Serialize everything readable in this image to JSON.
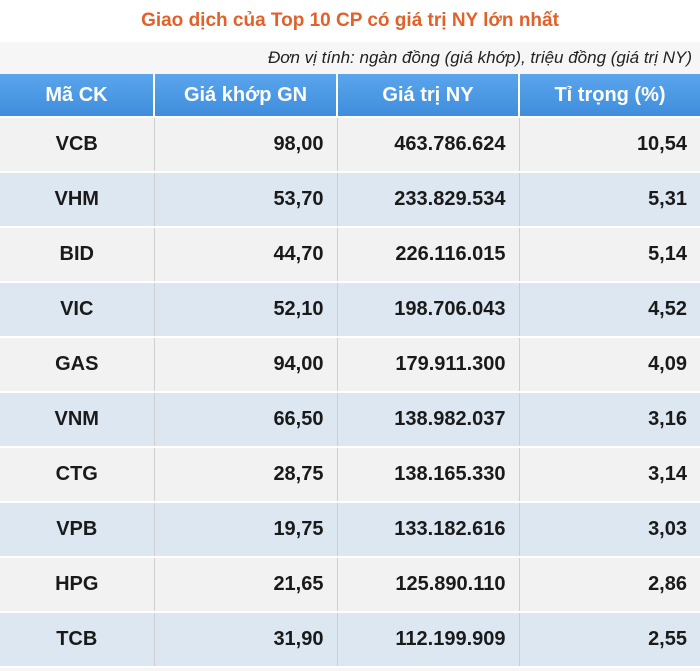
{
  "title": "Giao dịch của Top 10 CP có giá trị NY lớn nhất",
  "unit_note": "Đơn vị tính: ngàn đồng (giá khớp), triệu đồng (giá trị NY)",
  "columns": [
    "Mã CK",
    "Giá khớp GN",
    "Giá trị NY",
    "Tỉ trọng (%)"
  ],
  "rows": [
    {
      "code": "VCB",
      "price": "98,00",
      "value": "463.786.624",
      "weight": "10,54"
    },
    {
      "code": "VHM",
      "price": "53,70",
      "value": "233.829.534",
      "weight": "5,31"
    },
    {
      "code": "BID",
      "price": "44,70",
      "value": "226.116.015",
      "weight": "5,14"
    },
    {
      "code": "VIC",
      "price": "52,10",
      "value": "198.706.043",
      "weight": "4,52"
    },
    {
      "code": "GAS",
      "price": "94,00",
      "value": "179.911.300",
      "weight": "4,09"
    },
    {
      "code": "VNM",
      "price": "66,50",
      "value": "138.982.037",
      "weight": "3,16"
    },
    {
      "code": "CTG",
      "price": "28,75",
      "value": "138.165.330",
      "weight": "3,14"
    },
    {
      "code": "VPB",
      "price": "19,75",
      "value": "133.182.616",
      "weight": "3,03"
    },
    {
      "code": "HPG",
      "price": "21,65",
      "value": "125.890.110",
      "weight": "2,86"
    },
    {
      "code": "TCB",
      "price": "31,90",
      "value": "112.199.909",
      "weight": "2,55"
    }
  ],
  "colors": {
    "title": "#e2612b",
    "header_bg": "#4a96e3",
    "row_odd": "#f2f2f2",
    "row_even": "#dde7f1"
  }
}
